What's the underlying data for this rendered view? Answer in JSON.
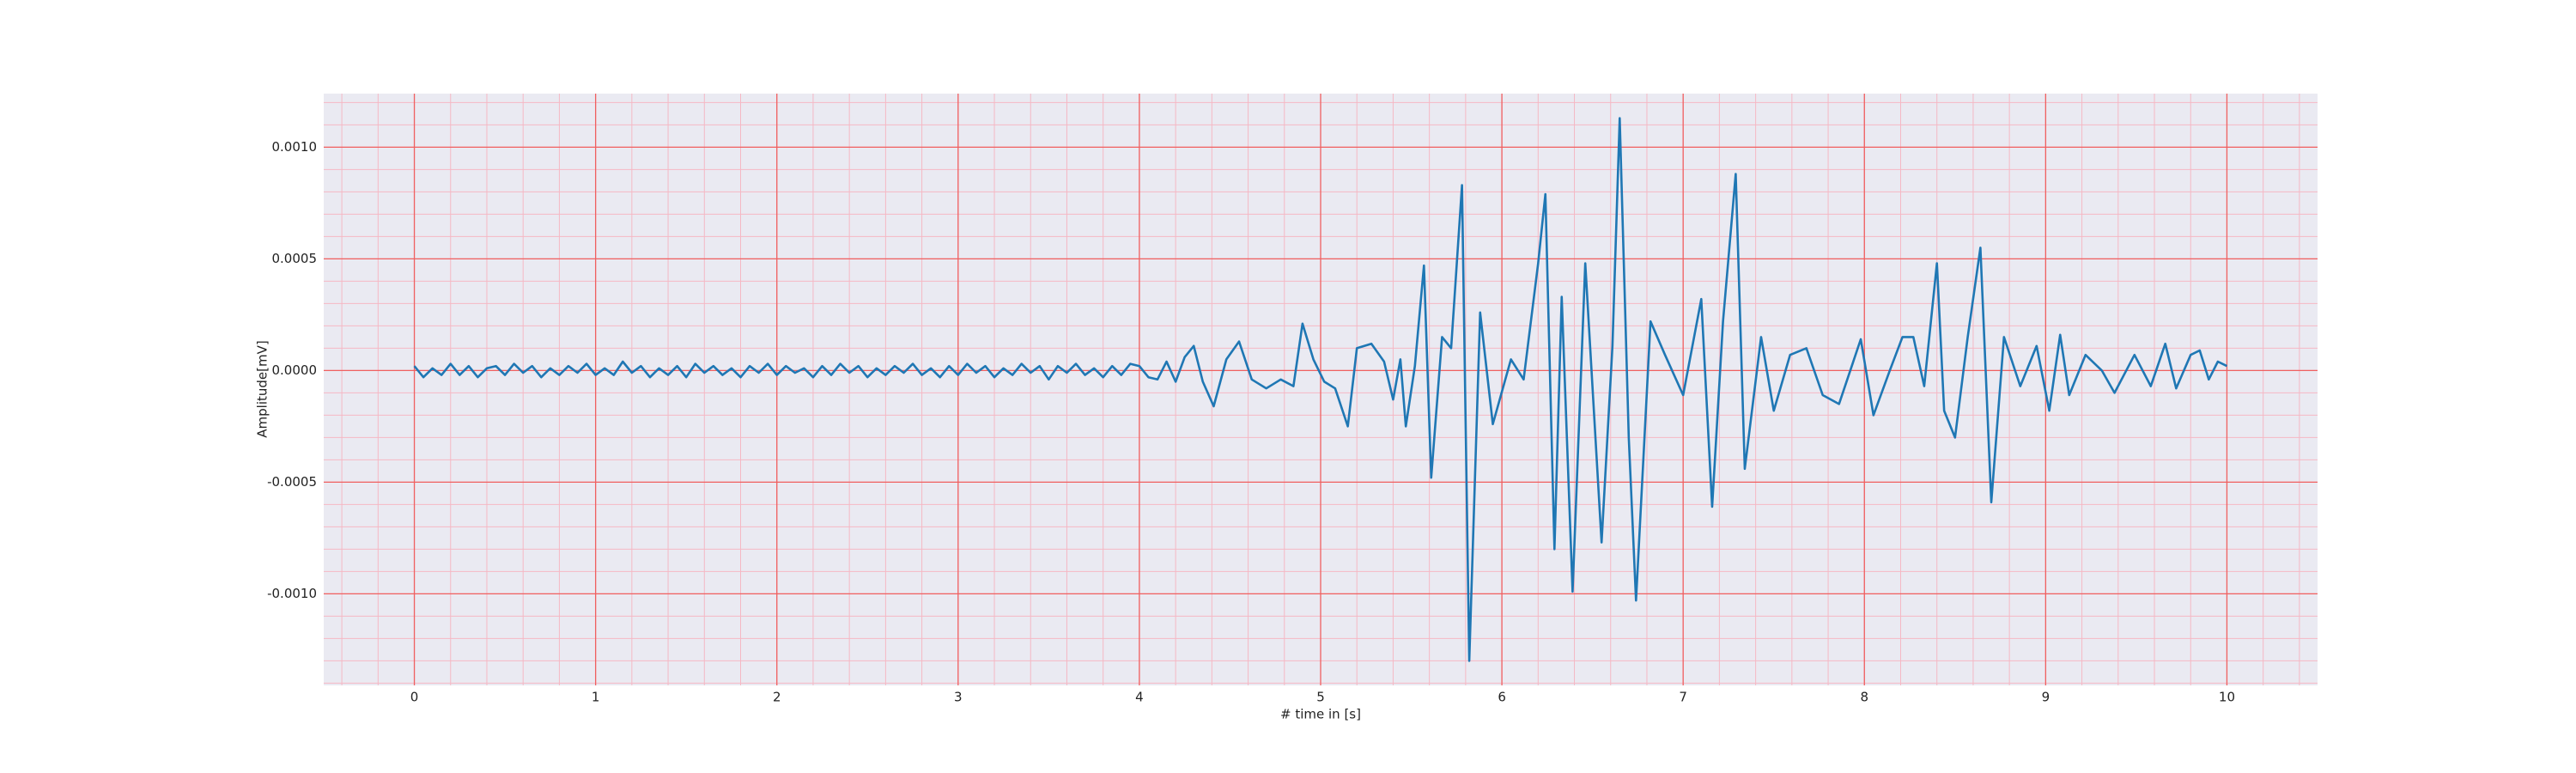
{
  "chart_data": {
    "type": "line",
    "xlabel": "# time in [s]",
    "ylabel": "Amplitude[mV]",
    "color": "#1f77b4",
    "grid": true,
    "minor_grid": true,
    "xlim": [
      -0.5,
      10.5
    ],
    "ylim": [
      -0.00141,
      0.00124
    ],
    "xticks": [
      0,
      1,
      2,
      3,
      4,
      5,
      6,
      7,
      8,
      9,
      10
    ],
    "yticks": [
      {
        "value": -0.001,
        "label": "-0.0010"
      },
      {
        "value": -0.0005,
        "label": "-0.0005"
      },
      {
        "value": 0,
        "label": "0.0000"
      },
      {
        "value": 0.0005,
        "label": "0.0005"
      },
      {
        "value": 0.001,
        "label": "0.0010"
      }
    ],
    "x": [
      0,
      0.05,
      0.1,
      0.15,
      0.2,
      0.25,
      0.3,
      0.35,
      0.4,
      0.45,
      0.5,
      0.55,
      0.6,
      0.65,
      0.7,
      0.75,
      0.8,
      0.85,
      0.9,
      0.95,
      1,
      1.05,
      1.1,
      1.15,
      1.2,
      1.25,
      1.3,
      1.35,
      1.4,
      1.45,
      1.5,
      1.55,
      1.6,
      1.65,
      1.7,
      1.75,
      1.8,
      1.85,
      1.9,
      1.95,
      2,
      2.05,
      2.1,
      2.15,
      2.2,
      2.25,
      2.3,
      2.35,
      2.4,
      2.45,
      2.5,
      2.55,
      2.6,
      2.65,
      2.7,
      2.75,
      2.8,
      2.85,
      2.9,
      2.95,
      3,
      3.05,
      3.1,
      3.15,
      3.2,
      3.25,
      3.3,
      3.35,
      3.4,
      3.45,
      3.5,
      3.55,
      3.6,
      3.65,
      3.7,
      3.75,
      3.8,
      3.85,
      3.9,
      3.95,
      4,
      4.05,
      4.1,
      4.15,
      4.2,
      4.25,
      4.3,
      4.35,
      4.41,
      4.48,
      4.55,
      4.62,
      4.7,
      4.78,
      4.85,
      4.9,
      4.96,
      5.02,
      5.08,
      5.15,
      5.2,
      5.28,
      5.35,
      5.4,
      5.44,
      5.47,
      5.52,
      5.57,
      5.61,
      5.67,
      5.72,
      5.78,
      5.82,
      5.88,
      5.95,
      6.05,
      6.12,
      6.2,
      6.24,
      6.29,
      6.33,
      6.39,
      6.46,
      6.55,
      6.61,
      6.65,
      6.7,
      6.74,
      6.82,
      6.9,
      7,
      7.1,
      7.16,
      7.22,
      7.29,
      7.34,
      7.43,
      7.5,
      7.59,
      7.68,
      7.77,
      7.86,
      7.98,
      8.05,
      8.14,
      8.21,
      8.27,
      8.33,
      8.4,
      8.44,
      8.5,
      8.57,
      8.64,
      8.7,
      8.77,
      8.86,
      8.95,
      9.02,
      9.08,
      9.13,
      9.22,
      9.31,
      9.38,
      9.49,
      9.58,
      9.66,
      9.72,
      9.8,
      9.85,
      9.9,
      9.95,
      10
    ],
    "values": [
      2e-05,
      -3e-05,
      1e-05,
      -2e-05,
      3e-05,
      -2e-05,
      2e-05,
      -3e-05,
      1e-05,
      2e-05,
      -2e-05,
      3e-05,
      -1e-05,
      2e-05,
      -3e-05,
      1e-05,
      -2e-05,
      2e-05,
      -1e-05,
      3e-05,
      -2e-05,
      1e-05,
      -2e-05,
      4e-05,
      -1e-05,
      2e-05,
      -3e-05,
      1e-05,
      -2e-05,
      2e-05,
      -3e-05,
      3e-05,
      -1e-05,
      2e-05,
      -2e-05,
      1e-05,
      -3e-05,
      2e-05,
      -1e-05,
      3e-05,
      -2e-05,
      2e-05,
      -1e-05,
      1e-05,
      -3e-05,
      2e-05,
      -2e-05,
      3e-05,
      -1e-05,
      2e-05,
      -3e-05,
      1e-05,
      -2e-05,
      2e-05,
      -1e-05,
      3e-05,
      -2e-05,
      1e-05,
      -3e-05,
      2e-05,
      -2e-05,
      3e-05,
      -1e-05,
      2e-05,
      -3e-05,
      1e-05,
      -2e-05,
      3e-05,
      -1e-05,
      2e-05,
      -4e-05,
      2e-05,
      -1e-05,
      3e-05,
      -2e-05,
      1e-05,
      -3e-05,
      2e-05,
      -2e-05,
      3e-05,
      2e-05,
      -3e-05,
      -4e-05,
      4e-05,
      -5e-05,
      6e-05,
      0.00011,
      -5e-05,
      -0.00016,
      5e-05,
      0.00013,
      -4e-05,
      -8e-05,
      -4e-05,
      -7e-05,
      0.00021,
      5e-05,
      -5e-05,
      -8e-05,
      -0.00025,
      0.0001,
      0.00012,
      4e-05,
      -0.00013,
      5e-05,
      -0.00025,
      2e-05,
      0.00047,
      -0.00048,
      0.00015,
      0.0001,
      0.00083,
      -0.0013,
      0.00026,
      -0.00024,
      5e-05,
      -4e-05,
      0.00048,
      0.00079,
      -0.0008,
      0.00033,
      -0.00099,
      0.00048,
      -0.00077,
      0.00011,
      0.00113,
      -0.0003,
      -0.00103,
      0.00022,
      7e-05,
      -0.00011,
      0.00032,
      -0.00061,
      0.00022,
      0.00088,
      -0.00044,
      0.00015,
      -0.00018,
      7e-05,
      0.0001,
      -0.00011,
      -0.00015,
      0.00014,
      -0.0002,
      0,
      0.00015,
      0.00015,
      -7e-05,
      0.00048,
      -0.00018,
      -0.0003,
      0.00015,
      0.00055,
      -0.00059,
      0.00015,
      -7e-05,
      0.00011,
      -0.00018,
      0.00016,
      -0.00011,
      7e-05,
      0,
      -0.0001,
      7e-05,
      -7e-05,
      0.00012,
      -8e-05,
      7e-05,
      9e-05,
      -4e-05,
      4e-05,
      2e-05
    ]
  }
}
